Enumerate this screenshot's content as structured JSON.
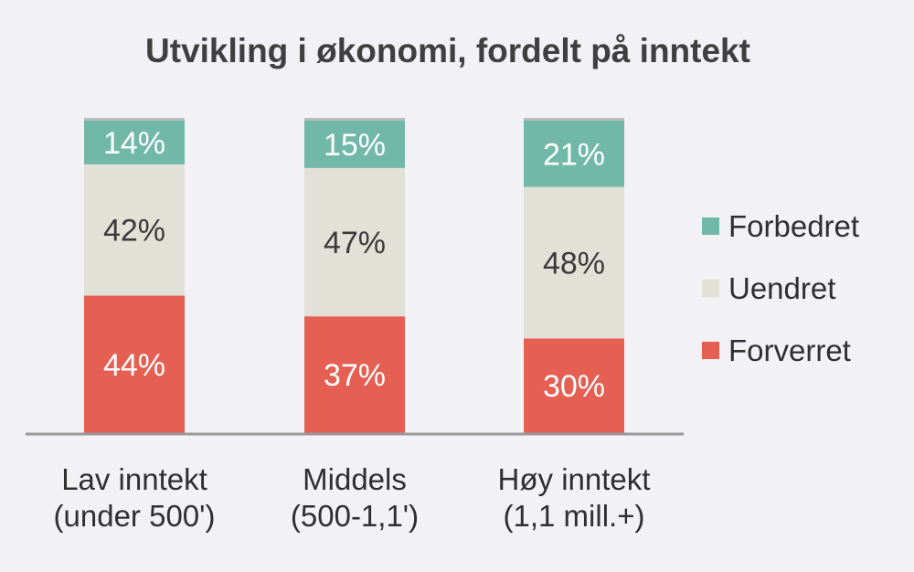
{
  "chart_data": {
    "type": "bar",
    "stacked": true,
    "percent": true,
    "title": "Utvikling i økonomi, fordelt på inntekt",
    "categories": [
      [
        "Lav inntekt",
        "(under 500')"
      ],
      [
        "Middels",
        "(500-1,1')"
      ],
      [
        "Høy inntekt",
        "(1,1 mill.+)"
      ]
    ],
    "series": [
      {
        "name": "Forverret",
        "color": "#e55f53",
        "label_color": "#ffffff",
        "values": [
          44,
          37,
          30
        ],
        "labels": [
          "44%",
          "37%",
          "30%"
        ]
      },
      {
        "name": "Uendret",
        "color": "#e2e1d7",
        "label_color": "#3a3a3a",
        "values": [
          42,
          47,
          48
        ],
        "labels": [
          "42%",
          "47%",
          "48%"
        ]
      },
      {
        "name": "Forbedret",
        "color": "#72b8a8",
        "label_color": "#ffffff",
        "values": [
          14,
          15,
          21
        ],
        "labels": [
          "14%",
          "15%",
          "21%"
        ]
      }
    ],
    "legend": {
      "position": "right",
      "order": [
        "Forbedret",
        "Uendret",
        "Forverret"
      ]
    },
    "ylim": [
      0,
      100
    ],
    "grid": false
  }
}
